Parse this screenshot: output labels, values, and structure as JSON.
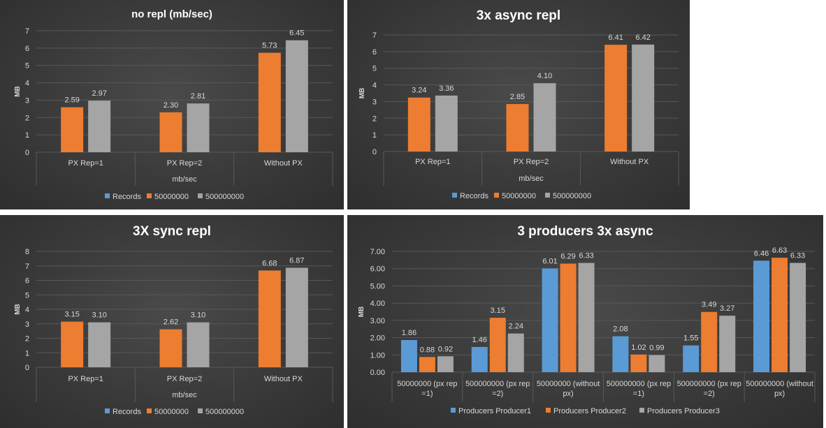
{
  "chart_data": [
    {
      "type": "bar",
      "title": "no repl (mb/sec)",
      "xlabel": "mb/sec",
      "ylabel": "MB",
      "ylim": [
        0,
        7
      ],
      "yticks": [
        "0",
        "1",
        "2",
        "3",
        "4",
        "5",
        "6",
        "7"
      ],
      "categories": [
        [
          "PX Rep=1"
        ],
        [
          "PX Rep=2"
        ],
        [
          "Without PX"
        ]
      ],
      "legend": [
        "Records",
        "50000000",
        "500000000"
      ],
      "legend_position": "bottom",
      "grid": true,
      "series": [
        {
          "name": "50000000",
          "values": [
            2.59,
            2.3,
            5.73
          ],
          "labels": [
            "2.59",
            "2.30",
            "5.73"
          ]
        },
        {
          "name": "500000000",
          "values": [
            2.97,
            2.81,
            6.45
          ],
          "labels": [
            "2.97",
            "2.81",
            "6.45"
          ]
        }
      ]
    },
    {
      "type": "bar",
      "title": "3x  async repl",
      "xlabel": "mb/sec",
      "ylabel": "MB",
      "ylim": [
        0,
        7
      ],
      "yticks": [
        "0",
        "1",
        "2",
        "3",
        "4",
        "5",
        "6",
        "7"
      ],
      "categories": [
        [
          "PX Rep=1"
        ],
        [
          "PX Rep=2"
        ],
        [
          "Without PX"
        ]
      ],
      "legend": [
        "Records",
        "50000000",
        "500000000"
      ],
      "legend_position": "bottom",
      "grid": true,
      "series": [
        {
          "name": "50000000",
          "values": [
            3.24,
            2.85,
            6.41
          ],
          "labels": [
            "3.24",
            "2.85",
            "6.41"
          ]
        },
        {
          "name": "500000000",
          "values": [
            3.36,
            4.1,
            6.42
          ],
          "labels": [
            "3.36",
            "4.10",
            "6.42"
          ]
        }
      ]
    },
    {
      "type": "bar",
      "title": "3X sync repl",
      "xlabel": "mb/sec",
      "ylabel": "MB",
      "ylim": [
        0,
        8
      ],
      "yticks": [
        "0",
        "1",
        "2",
        "3",
        "4",
        "5",
        "6",
        "7",
        "8"
      ],
      "categories": [
        [
          "PX Rep=1"
        ],
        [
          "PX Rep=2"
        ],
        [
          "Without PX"
        ]
      ],
      "legend": [
        "Records",
        "50000000",
        "500000000"
      ],
      "legend_position": "bottom",
      "grid": true,
      "series": [
        {
          "name": "50000000",
          "values": [
            3.15,
            2.62,
            6.68
          ],
          "labels": [
            "3.15",
            "2.62",
            "6.68"
          ]
        },
        {
          "name": "500000000",
          "values": [
            3.1,
            3.1,
            6.87
          ],
          "labels": [
            "3.10",
            "3.10",
            "6.87"
          ]
        }
      ]
    },
    {
      "type": "bar",
      "title": "3 producers  3x async",
      "xlabel": "",
      "ylabel": "MB",
      "ylim": [
        0,
        7
      ],
      "yticks": [
        "0.00",
        "1.00",
        "2.00",
        "3.00",
        "4.00",
        "5.00",
        "6.00",
        "7.00"
      ],
      "categories": [
        [
          "50000000 (px rep",
          "=1)"
        ],
        [
          "500000000 (px rep",
          "=2)"
        ],
        [
          "50000000 (without",
          "px)"
        ],
        [
          "500000000 (px rep",
          "=1)"
        ],
        [
          "500000000 (px rep",
          "=2)"
        ],
        [
          "500000000 (without",
          "px)"
        ]
      ],
      "legend": [
        "Producers Producer1",
        "Producers Producer2",
        "Producers Producer3"
      ],
      "legend_position": "bottom",
      "grid": true,
      "series": [
        {
          "name": "Producers Producer1",
          "values": [
            1.86,
            1.46,
            6.01,
            2.08,
            1.55,
            6.46
          ],
          "labels": [
            "1.86",
            "1.46",
            "6.01",
            "2.08",
            "1.55",
            "6.46"
          ]
        },
        {
          "name": "Producers Producer2",
          "values": [
            0.88,
            3.15,
            6.29,
            1.02,
            3.49,
            6.63
          ],
          "labels": [
            "0.88",
            "3.15",
            "6.29",
            "1.02",
            "3.49",
            "6.63"
          ]
        },
        {
          "name": "Producers Producer3",
          "values": [
            0.92,
            2.24,
            6.33,
            0.99,
            3.27,
            6.33
          ],
          "labels": [
            "0.92",
            "2.24",
            "6.33",
            "0.99",
            "3.27",
            "6.33"
          ]
        }
      ]
    }
  ],
  "colors": {
    "blue": "#5b9bd5",
    "orange": "#ed7d31",
    "gray": "#a5a5a5",
    "text": "#d9d9d9",
    "grid": "#595959",
    "title": "#ffffff"
  },
  "series_colors": [
    [
      "blue",
      "orange",
      "gray"
    ],
    [
      "blue",
      "orange",
      "gray"
    ],
    [
      "blue",
      "orange",
      "gray"
    ],
    [
      "blue",
      "orange",
      "gray"
    ]
  ]
}
